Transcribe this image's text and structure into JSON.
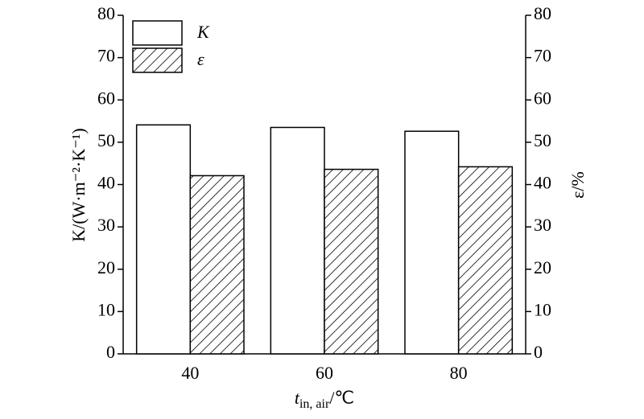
{
  "chart_data": {
    "type": "bar",
    "xlabel": [
      "t",
      "in, air",
      "/℃"
    ],
    "ylabel": "K/(W·m⁻²·K⁻¹)",
    "y2label": "ε/%",
    "categories": [
      "40",
      "60",
      "80"
    ],
    "series": [
      {
        "name": "K",
        "color": "#ffffff",
        "hatch": false,
        "values": [
          54.1,
          53.5,
          52.6
        ]
      },
      {
        "name": "ε",
        "color": "#ffffff",
        "hatch": true,
        "axis": "y2",
        "values": [
          42.1,
          43.6,
          44.2
        ]
      }
    ],
    "ylim": [
      0,
      80
    ],
    "yticks": [
      0,
      10,
      20,
      30,
      40,
      50,
      60,
      70,
      80
    ],
    "y2lim": [
      0,
      80
    ],
    "y2ticks": [
      0,
      10,
      20,
      30,
      40,
      50,
      60,
      70,
      80
    ],
    "legend": "upper left"
  }
}
